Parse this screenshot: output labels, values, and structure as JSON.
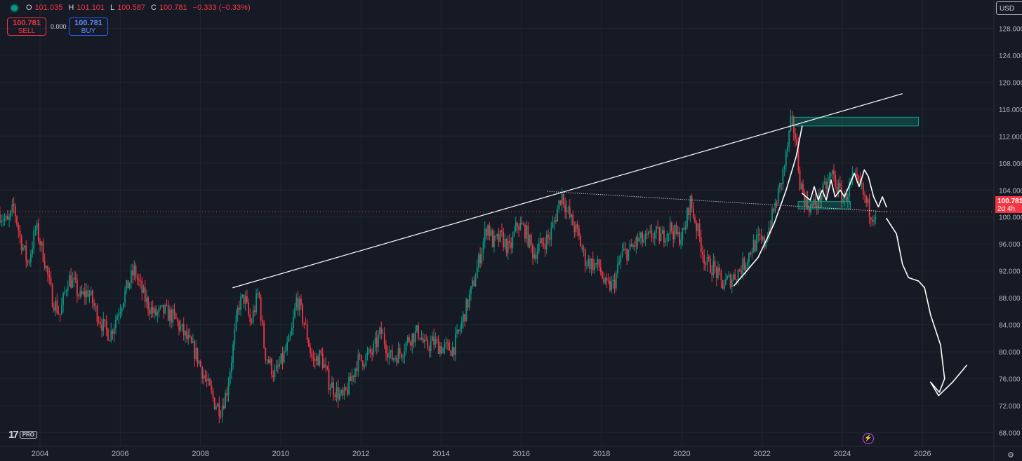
{
  "legend": {
    "open_label": "O",
    "open": "101.035",
    "high_label": "H",
    "high": "101.101",
    "low_label": "L",
    "low": "100.587",
    "close_label": "C",
    "close": "100.781",
    "change": "−0.333 (−0.33%)"
  },
  "trade": {
    "sell_price": "100.781",
    "sell_label": "SELL",
    "spread": "0.000",
    "buy_price": "100.781",
    "buy_label": "BUY"
  },
  "currency_button": "USD",
  "price_tag": {
    "price": "100.781",
    "countdown": "2d 4h"
  },
  "logo": {
    "pro": "PRO"
  },
  "colors": {
    "up": "#089981",
    "down": "#f23645",
    "background": "#161a25",
    "grid": "#222631",
    "drawing": "#ffffff",
    "zone": "#0e9f86"
  },
  "chart_data": {
    "type": "candlestick",
    "x_range": [
      2003.0,
      2027.5
    ],
    "ylim": [
      66.5,
      129.5
    ],
    "y_ticks": [
      68,
      72,
      76,
      80,
      84,
      88,
      92,
      96,
      100,
      104,
      108,
      112,
      116,
      120,
      124,
      128
    ],
    "y_tick_labels": [
      "68.000",
      "72.000",
      "76.000",
      "80.000",
      "84.000",
      "88.000",
      "92.000",
      "96.000",
      "100.000",
      "104.000",
      "108.000",
      "112.000",
      "116.000",
      "120.000",
      "124.000",
      "128.000"
    ],
    "x_ticks": [
      2004,
      2006,
      2008,
      2010,
      2012,
      2014,
      2016,
      2018,
      2020,
      2022,
      2024,
      2026
    ],
    "x_tick_labels": [
      "2004",
      "2006",
      "2008",
      "2010",
      "2012",
      "2014",
      "2016",
      "2018",
      "2020",
      "2022",
      "2024",
      "2026"
    ],
    "last_price": 100.781,
    "grid": true,
    "price_path": [
      [
        2003.0,
        100.5
      ],
      [
        2003.2,
        99
      ],
      [
        2003.35,
        101.5
      ],
      [
        2003.5,
        97
      ],
      [
        2003.7,
        93
      ],
      [
        2003.9,
        98.5
      ],
      [
        2004.1,
        94
      ],
      [
        2004.3,
        88
      ],
      [
        2004.5,
        85.5
      ],
      [
        2004.7,
        91
      ],
      [
        2004.85,
        90
      ],
      [
        2005.0,
        88
      ],
      [
        2005.2,
        89
      ],
      [
        2005.4,
        86
      ],
      [
        2005.6,
        83.5
      ],
      [
        2005.75,
        82.5
      ],
      [
        2005.95,
        86
      ],
      [
        2006.2,
        90
      ],
      [
        2006.35,
        92
      ],
      [
        2006.6,
        88
      ],
      [
        2006.85,
        85.5
      ],
      [
        2007.1,
        86
      ],
      [
        2007.35,
        85
      ],
      [
        2007.6,
        82.5
      ],
      [
        2007.9,
        79.5
      ],
      [
        2008.15,
        75.5
      ],
      [
        2008.35,
        72.5
      ],
      [
        2008.5,
        71.5
      ],
      [
        2008.65,
        74
      ],
      [
        2008.8,
        80
      ],
      [
        2008.95,
        87
      ],
      [
        2009.1,
        88
      ],
      [
        2009.25,
        84
      ],
      [
        2009.45,
        89
      ],
      [
        2009.6,
        80
      ],
      [
        2009.85,
        76.5
      ],
      [
        2010.05,
        79
      ],
      [
        2010.25,
        82
      ],
      [
        2010.4,
        88
      ],
      [
        2010.6,
        84
      ],
      [
        2010.8,
        78.5
      ],
      [
        2011.0,
        79.5
      ],
      [
        2011.2,
        75.5
      ],
      [
        2011.4,
        74
      ],
      [
        2011.55,
        73
      ],
      [
        2011.7,
        75
      ],
      [
        2011.9,
        78.5
      ],
      [
        2012.1,
        79
      ],
      [
        2012.3,
        80
      ],
      [
        2012.5,
        83
      ],
      [
        2012.75,
        79
      ],
      [
        2013.0,
        80
      ],
      [
        2013.2,
        82
      ],
      [
        2013.45,
        83
      ],
      [
        2013.6,
        80.5
      ],
      [
        2013.8,
        81.5
      ],
      [
        2014.05,
        80.5
      ],
      [
        2014.3,
        80.5
      ],
      [
        2014.45,
        83
      ],
      [
        2014.6,
        86
      ],
      [
        2014.8,
        90
      ],
      [
        2015.0,
        95
      ],
      [
        2015.15,
        99
      ],
      [
        2015.3,
        96
      ],
      [
        2015.5,
        97
      ],
      [
        2015.7,
        95
      ],
      [
        2015.9,
        99
      ],
      [
        2016.1,
        98
      ],
      [
        2016.3,
        94.5
      ],
      [
        2016.5,
        96
      ],
      [
        2016.7,
        97
      ],
      [
        2016.85,
        100
      ],
      [
        2017.0,
        103.5
      ],
      [
        2017.2,
        100
      ],
      [
        2017.4,
        97.5
      ],
      [
        2017.6,
        93.5
      ],
      [
        2017.8,
        93
      ],
      [
        2017.95,
        92.5
      ],
      [
        2018.1,
        89.5
      ],
      [
        2018.3,
        90
      ],
      [
        2018.5,
        94.5
      ],
      [
        2018.7,
        95
      ],
      [
        2018.9,
        96.5
      ],
      [
        2019.1,
        96.5
      ],
      [
        2019.3,
        97.5
      ],
      [
        2019.5,
        97
      ],
      [
        2019.7,
        98.5
      ],
      [
        2019.9,
        97
      ],
      [
        2020.05,
        97.5
      ],
      [
        2020.2,
        102.5
      ],
      [
        2020.35,
        99
      ],
      [
        2020.6,
        93
      ],
      [
        2020.8,
        92.5
      ],
      [
        2021.0,
        90
      ],
      [
        2021.15,
        90.5
      ],
      [
        2021.35,
        91.5
      ],
      [
        2021.55,
        93
      ],
      [
        2021.75,
        95.5
      ],
      [
        2021.9,
        96.5
      ],
      [
        2022.05,
        96
      ],
      [
        2022.25,
        100
      ],
      [
        2022.45,
        104.5
      ],
      [
        2022.6,
        109
      ],
      [
        2022.72,
        114
      ],
      [
        2022.82,
        112.5
      ],
      [
        2022.95,
        105
      ],
      [
        2023.1,
        102
      ],
      [
        2023.25,
        101.5
      ],
      [
        2023.4,
        102.5
      ],
      [
        2023.55,
        104
      ],
      [
        2023.75,
        106.5
      ],
      [
        2023.9,
        104
      ],
      [
        2024.05,
        102.5
      ],
      [
        2024.25,
        105.5
      ],
      [
        2024.45,
        104.5
      ],
      [
        2024.6,
        102
      ],
      [
        2024.72,
        100.5
      ],
      [
        2024.85,
        100.781
      ]
    ],
    "rectangles": [
      {
        "x1": 2022.75,
        "x2": 2025.9,
        "y1": 113.5,
        "y2": 114.8
      },
      {
        "x1": 2022.9,
        "x2": 2024.2,
        "y1": 101.2,
        "y2": 102.3
      }
    ],
    "trend_lines": [
      {
        "style": "solid",
        "points": [
          [
            2008.8,
            89.5
          ],
          [
            2025.5,
            118.3
          ]
        ]
      },
      {
        "style": "dotted",
        "points": [
          [
            2016.65,
            103.8
          ],
          [
            2025.1,
            100.8
          ]
        ]
      }
    ],
    "curves": [
      {
        "points": [
          [
            2021.3,
            89.8
          ],
          [
            2021.9,
            94
          ],
          [
            2022.3,
            99
          ],
          [
            2022.6,
            104
          ],
          [
            2022.85,
            109
          ],
          [
            2023.0,
            113.5
          ]
        ]
      },
      {
        "points": [
          [
            2023.0,
            103.5
          ],
          [
            2023.2,
            102.5
          ],
          [
            2023.3,
            104.5
          ],
          [
            2023.4,
            102.5
          ],
          [
            2023.5,
            104
          ],
          [
            2023.6,
            102.5
          ],
          [
            2023.72,
            105.5
          ],
          [
            2023.82,
            103
          ],
          [
            2023.95,
            104
          ],
          [
            2024.05,
            103
          ]
        ]
      },
      {
        "points": [
          [
            2024.05,
            103
          ],
          [
            2024.2,
            105
          ],
          [
            2024.3,
            106.5
          ],
          [
            2024.42,
            104.5
          ],
          [
            2024.55,
            107
          ],
          [
            2024.65,
            106
          ],
          [
            2024.78,
            103
          ],
          [
            2024.9,
            101.5
          ],
          [
            2025.0,
            103
          ],
          [
            2025.1,
            101.5
          ]
        ]
      },
      {
        "points": [
          [
            2025.1,
            99.8
          ],
          [
            2025.35,
            97.5
          ],
          [
            2025.5,
            93
          ],
          [
            2025.65,
            91
          ],
          [
            2025.9,
            90.5
          ],
          [
            2026.05,
            89.5
          ],
          [
            2026.2,
            85.5
          ],
          [
            2026.45,
            81
          ],
          [
            2026.55,
            76
          ],
          [
            2026.42,
            74
          ],
          [
            2026.2,
            75.5
          ],
          [
            2026.4,
            73.5
          ],
          [
            2026.75,
            75.5
          ],
          [
            2027.1,
            78
          ]
        ]
      }
    ]
  }
}
